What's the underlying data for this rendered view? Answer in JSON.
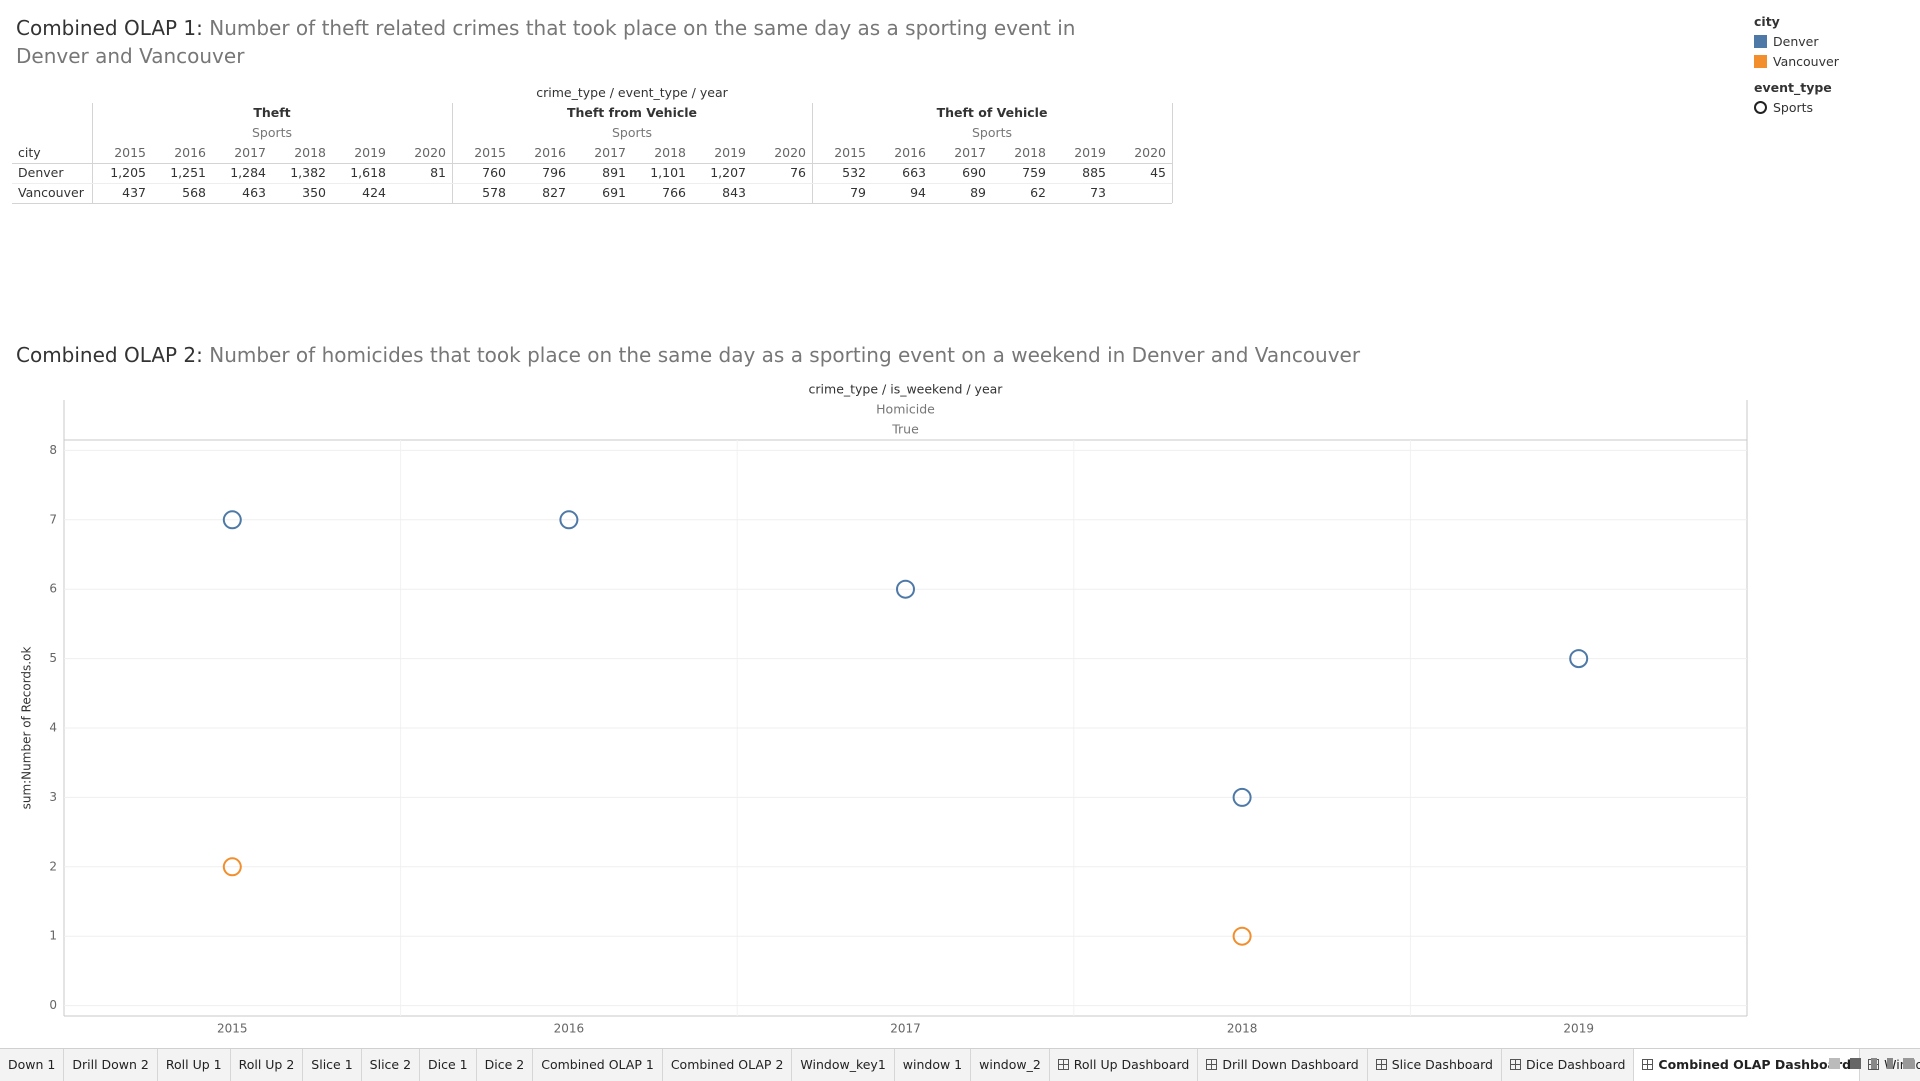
{
  "olap1": {
    "title": "Combined OLAP 1:",
    "subtitle": "Number of theft related crimes that took place on the same day as a sporting event in Denver and Vancouver",
    "table": {
      "header": "crime_type / event_type / year",
      "row_header": "city",
      "groups": [
        {
          "crime_type": "Theft",
          "event_type": "Sports",
          "years": [
            2015,
            2016,
            2017,
            2018,
            2019,
            2020
          ]
        },
        {
          "crime_type": "Theft from Vehicle",
          "event_type": "Sports",
          "years": [
            2015,
            2016,
            2017,
            2018,
            2019,
            2020
          ]
        },
        {
          "crime_type": "Theft of Vehicle",
          "event_type": "Sports",
          "years": [
            2015,
            2016,
            2017,
            2018,
            2019,
            2020
          ]
        }
      ],
      "rows": [
        {
          "city": "Denver",
          "values": [
            [
              "1,205",
              "1,251",
              "1,284",
              "1,382",
              "1,618",
              "81"
            ],
            [
              "760",
              "796",
              "891",
              "1,101",
              "1,207",
              "76"
            ],
            [
              "532",
              "663",
              "690",
              "759",
              "885",
              "45"
            ]
          ]
        },
        {
          "city": "Vancouver",
          "values": [
            [
              "437",
              "568",
              "463",
              "350",
              "424",
              null
            ],
            [
              "578",
              "827",
              "691",
              "766",
              "843",
              null
            ],
            [
              "79",
              "94",
              "89",
              "62",
              "73",
              null
            ]
          ]
        }
      ]
    }
  },
  "chart_data": {
    "type": "scatter",
    "title": "Combined OLAP 2:",
    "subtitle": "Number of homicides that took place on the same day as a sporting event on a weekend in Denver and Vancouver",
    "header": "crime_type / is_weekend / year",
    "header_values": [
      "Homicide",
      "True"
    ],
    "ylabel": "sum:Number of Records.ok",
    "categories": [
      "2015",
      "2016",
      "2017",
      "2018",
      "2019"
    ],
    "series": [
      {
        "name": "Denver",
        "color": "#4e79a7",
        "values": [
          7,
          7,
          6,
          3,
          5
        ]
      },
      {
        "name": "Vancouver",
        "color": "#f28e2b",
        "values": [
          2,
          null,
          null,
          1,
          null
        ]
      }
    ],
    "ylim": [
      -0.15,
      8.15
    ],
    "yticks": [
      0,
      1,
      2,
      3,
      4,
      5,
      6,
      7,
      8
    ],
    "grid": true,
    "legend": {
      "color_title": "city",
      "shape_title": "event_type",
      "shape_label": "Sports"
    }
  },
  "tabs": [
    {
      "label": "Down 1"
    },
    {
      "label": "Drill Down 2"
    },
    {
      "label": "Roll Up 1"
    },
    {
      "label": "Roll Up 2"
    },
    {
      "label": "Slice 1"
    },
    {
      "label": "Slice 2"
    },
    {
      "label": "Dice 1"
    },
    {
      "label": "Dice 2"
    },
    {
      "label": "Combined OLAP 1"
    },
    {
      "label": "Combined OLAP 2"
    },
    {
      "label": "Window_key1"
    },
    {
      "label": "window 1"
    },
    {
      "label": "window_2"
    },
    {
      "label": "Roll Up Dashboard",
      "dashboard": true
    },
    {
      "label": "Drill Down Dashboard",
      "dashboard": true
    },
    {
      "label": "Slice Dashboard",
      "dashboard": true
    },
    {
      "label": "Dice Dashboard",
      "dashboard": true
    },
    {
      "label": "Combined OLAP Dashboard",
      "dashboard": true,
      "selected": true
    },
    {
      "label": "Window Dashboard",
      "dashboard": true
    }
  ]
}
